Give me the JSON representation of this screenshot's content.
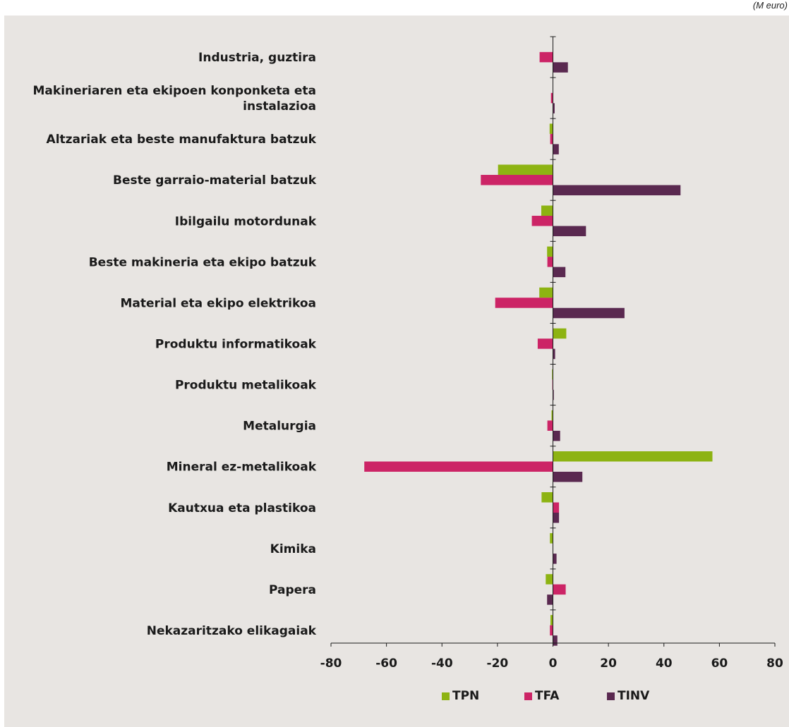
{
  "unit_label": "(M euro)",
  "colors": {
    "TPN": "#8db312",
    "TFA": "#cc2466",
    "TINV": "#5a2950",
    "background": "#e8e5e2"
  },
  "chart_data": {
    "type": "bar",
    "orientation": "horizontal",
    "categories": [
      "Industria, guztira",
      "Makineriaren eta ekipoen konponketa eta instalazioa",
      "Altzariak eta beste manufaktura batzuk",
      "Beste garraio-material batzuk",
      "Ibilgailu motordunak",
      "Beste makineria eta ekipo batzuk",
      "Material eta ekipo elektrikoa",
      "Produktu informatikoak",
      "Produktu metalikoak",
      "Metalurgia",
      "Mineral ez-metalikoak",
      "Kautxua eta plastikoa",
      "Kimika",
      "Papera",
      "Nekazaritzako elikagaiak"
    ],
    "category_lines": [
      [
        "Industria, guztira"
      ],
      [
        "Makineriaren eta ekipoen konponketa eta",
        "instalazioa"
      ],
      [
        "Altzariak eta beste manufaktura batzuk"
      ],
      [
        "Beste garraio-material batzuk"
      ],
      [
        "Ibilgailu motordunak"
      ],
      [
        "Beste makineria eta ekipo batzuk"
      ],
      [
        "Material eta ekipo elektrikoa"
      ],
      [
        "Produktu informatikoak"
      ],
      [
        "Produktu metalikoak"
      ],
      [
        "Metalurgia"
      ],
      [
        "Mineral ez-metalikoak"
      ],
      [
        "Kautxua eta plastikoa"
      ],
      [
        "Kimika"
      ],
      [
        "Papera"
      ],
      [
        "Nekazaritzako elikagaiak"
      ]
    ],
    "series": [
      {
        "name": "TPN",
        "values": [
          0,
          0,
          -1.2,
          -19.8,
          -4.2,
          -2.1,
          -4.9,
          4.8,
          -0.3,
          -0.5,
          57.5,
          -4.1,
          -1.1,
          -2.6,
          -0.9
        ]
      },
      {
        "name": "TFA",
        "values": [
          -4.8,
          -0.7,
          -1.0,
          -26.0,
          -7.6,
          -2.0,
          -20.8,
          -5.5,
          -0.2,
          -2.0,
          -68.0,
          2.2,
          0,
          4.6,
          -1.1
        ]
      },
      {
        "name": "TINV",
        "values": [
          5.4,
          0.6,
          2.1,
          46.0,
          11.9,
          4.5,
          25.8,
          0.8,
          0.3,
          2.6,
          10.6,
          2.2,
          1.3,
          -2.1,
          1.6
        ]
      }
    ],
    "xlim": [
      -80,
      80
    ],
    "xticks": [
      "-80",
      "-60",
      "-40",
      "-20",
      "0",
      "20",
      "40",
      "60",
      "80"
    ],
    "xlabel": "",
    "ylabel": "",
    "grid": false,
    "legend_position": "bottom"
  }
}
